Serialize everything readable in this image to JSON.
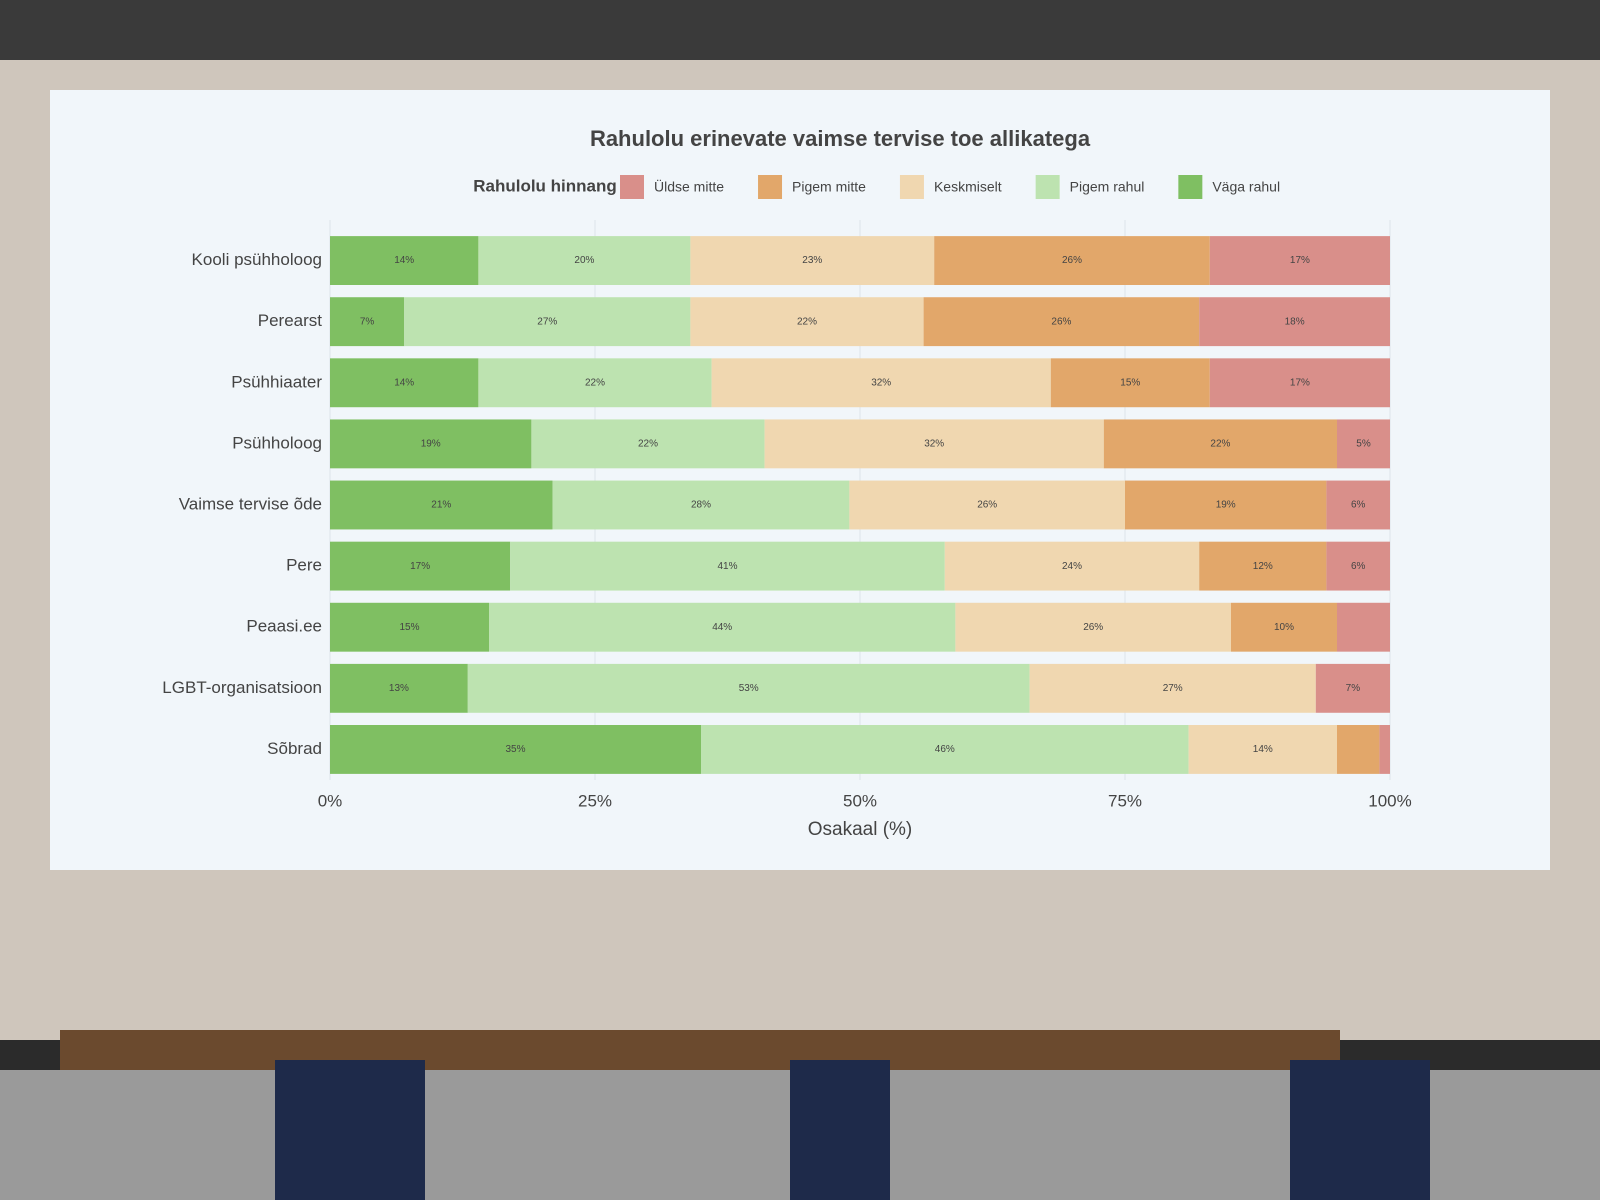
{
  "chart_data": {
    "type": "stacked_barh",
    "title": "Rahulolu erinevate vaimse tervise toe allikatega",
    "legend_title": "Rahulolu hinnang",
    "xlabel": "Osakaal (%)",
    "categories": [
      "Kooli psühholoog",
      "Perearst",
      "Psühhiaater",
      "Psühholoog",
      "Vaimse tervise õde",
      "Pere",
      "Peaasi.ee",
      "LGBT-organisatsioon",
      "Sõbrad"
    ],
    "series": [
      {
        "name": "Üldse mitte",
        "color": "#d98f8a",
        "values": [
          17,
          18,
          17,
          5,
          6,
          6,
          5,
          7,
          1
        ],
        "value_labels": [
          "17%",
          "18%",
          "17%",
          "5%",
          "6%",
          "6%",
          null,
          "7%",
          null
        ]
      },
      {
        "name": "Pigem mitte",
        "color": "#e2a76a",
        "values": [
          26,
          26,
          15,
          22,
          19,
          12,
          10,
          0,
          4
        ],
        "value_labels": [
          "26%",
          "26%",
          "15%",
          "22%",
          "19%",
          "12%",
          "10%",
          null,
          null
        ]
      },
      {
        "name": "Keskmiselt",
        "color": "#f0d7b0",
        "values": [
          23,
          22,
          32,
          32,
          26,
          24,
          26,
          27,
          14
        ],
        "value_labels": [
          "23%",
          "22%",
          "32%",
          "32%",
          "26%",
          "24%",
          "26%",
          "27%",
          "14%"
        ]
      },
      {
        "name": "Pigem rahul",
        "color": "#bde3b0",
        "values": [
          20,
          27,
          22,
          22,
          28,
          41,
          44,
          53,
          46
        ],
        "value_labels": [
          "20%",
          "27%",
          "22%",
          "22%",
          "28%",
          "41%",
          "44%",
          "53%",
          "46%"
        ]
      },
      {
        "name": "Väga rahul",
        "color": "#7fbf62",
        "values": [
          14,
          7,
          14,
          19,
          21,
          17,
          15,
          13,
          35
        ],
        "value_labels": [
          "14%",
          "7%",
          "14%",
          "19%",
          "21%",
          "17%",
          "15%",
          "13%",
          "35%"
        ]
      }
    ],
    "stack_order": "reverse",
    "xlim": [
      0,
      100
    ],
    "xticks": [
      {
        "value": 0,
        "label": "0%"
      },
      {
        "value": 25,
        "label": "25%"
      },
      {
        "value": 50,
        "label": "50%"
      },
      {
        "value": 75,
        "label": "75%"
      },
      {
        "value": 100,
        "label": "100%"
      }
    ],
    "grid": true
  }
}
